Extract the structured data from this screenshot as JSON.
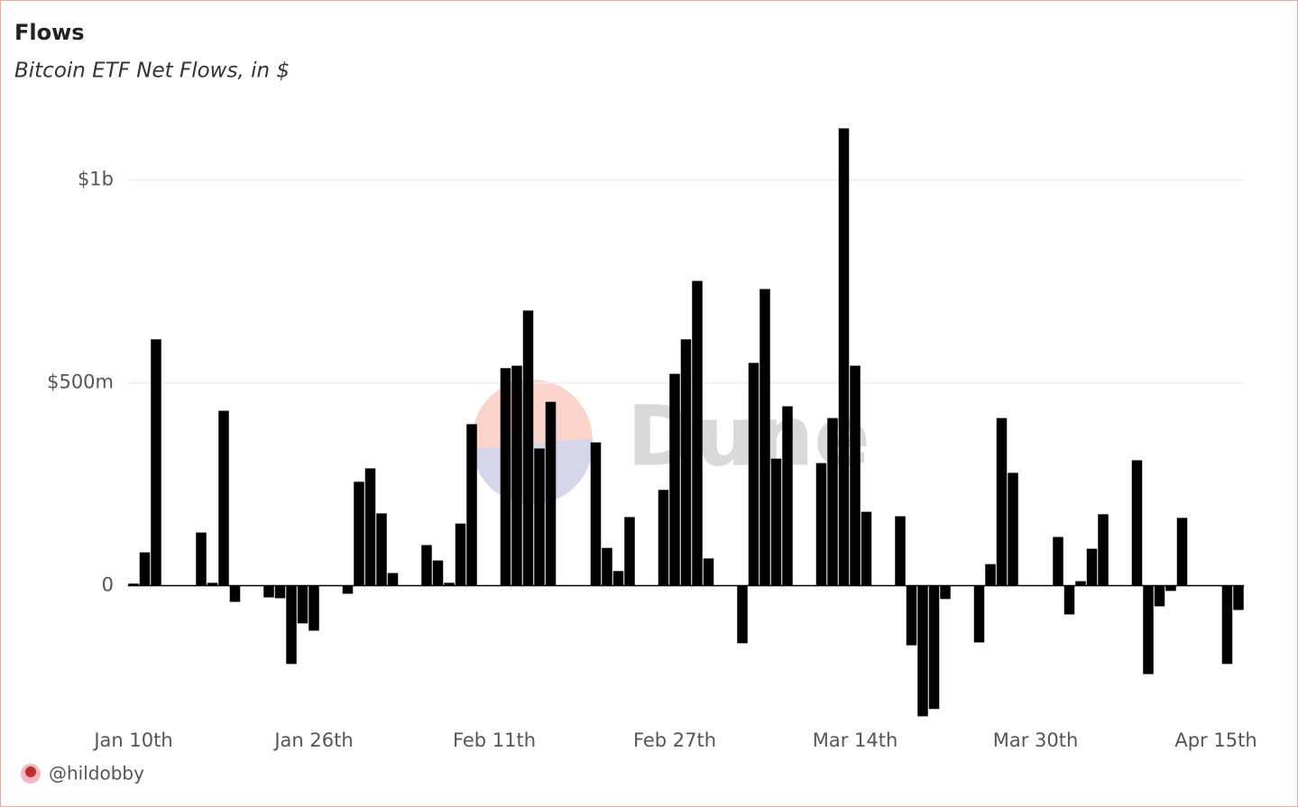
{
  "chart_data": {
    "type": "bar",
    "title": "Flows",
    "subtitle": "Bitcoin ETF Net Flows, in $",
    "watermark": "Dune",
    "author": "@hildobby",
    "color": "#000000",
    "grid": true,
    "categories": [
      "Jan 10th",
      null,
      null,
      null,
      null,
      null,
      null,
      null,
      null,
      null,
      null,
      null,
      null,
      null,
      null,
      null,
      "Jan 26th",
      null,
      null,
      null,
      null,
      null,
      null,
      null,
      null,
      null,
      null,
      null,
      null,
      null,
      null,
      null,
      "Feb 11th",
      null,
      null,
      null,
      null,
      null,
      null,
      null,
      null,
      null,
      null,
      null,
      null,
      null,
      null,
      null,
      "Feb 27th",
      null,
      null,
      null,
      null,
      null,
      null,
      null,
      null,
      null,
      null,
      null,
      null,
      null,
      null,
      null,
      "Mar 14th",
      null,
      null,
      null,
      null,
      null,
      null,
      null,
      null,
      null,
      null,
      null,
      null,
      null,
      null,
      null,
      "Mar 30th",
      null,
      null,
      null,
      null,
      null,
      null,
      null,
      null,
      null,
      null,
      null,
      null,
      null,
      null,
      null,
      "Apr 15th",
      null,
      null
    ],
    "values": [
      5000000,
      82000000,
      607000000,
      0,
      0,
      0,
      131000000,
      7000000,
      431000000,
      -40000000,
      0,
      0,
      -29000000,
      -31000000,
      -193000000,
      -93000000,
      -111000000,
      0,
      0,
      -20000000,
      256000000,
      289000000,
      178000000,
      31000000,
      0,
      0,
      100000000,
      62000000,
      7000000,
      153000000,
      398000000,
      0,
      0,
      536000000,
      542000000,
      678000000,
      338000000,
      453000000,
      0,
      0,
      0,
      353000000,
      93000000,
      36000000,
      169000000,
      0,
      0,
      236000000,
      522000000,
      607000000,
      751000000,
      67000000,
      0,
      0,
      -142000000,
      549000000,
      731000000,
      313000000,
      442000000,
      0,
      0,
      302000000,
      413000000,
      1127000000,
      542000000,
      182000000,
      0,
      0,
      171000000,
      -147000000,
      -322000000,
      -304000000,
      -33000000,
      0,
      0,
      -140000000,
      53000000,
      413000000,
      278000000,
      0,
      0,
      0,
      120000000,
      -71000000,
      11000000,
      91000000,
      176000000,
      0,
      0,
      309000000,
      -218000000,
      -51000000,
      -13000000,
      167000000,
      0,
      0,
      0,
      -193000000,
      -60000000
    ],
    "ylim": [
      -350000000,
      1150000000
    ],
    "yticks": [
      0,
      {
        "value": 500000000,
        "label": "$500m"
      },
      {
        "value": 1000000000,
        "label": "$1b"
      }
    ]
  }
}
